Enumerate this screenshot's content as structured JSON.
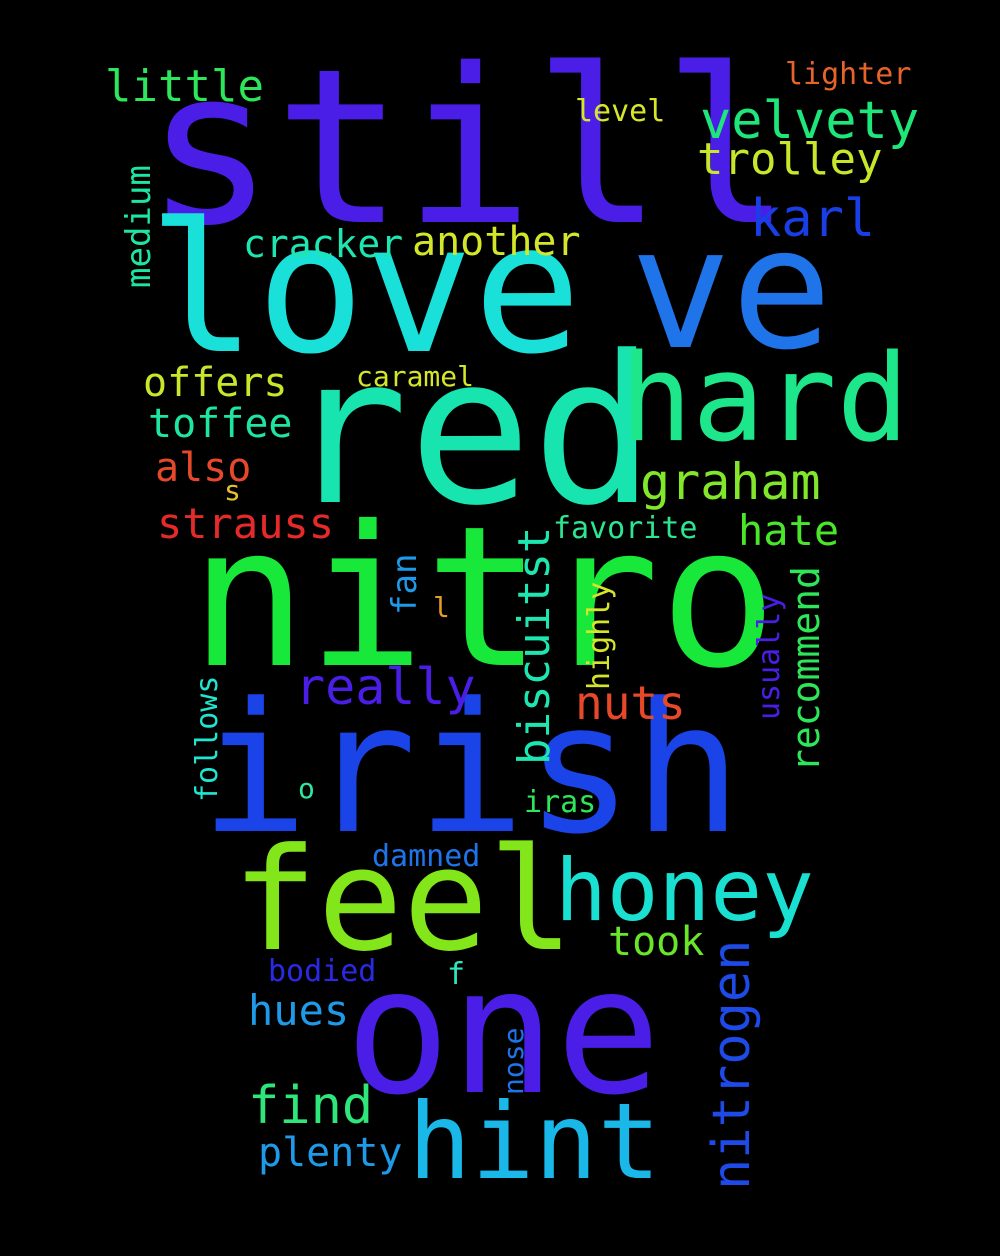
{
  "words": {
    "still": {
      "text": "still",
      "color": "#4a1ee6"
    },
    "love": {
      "text": "love",
      "color": "#19e0d8"
    },
    "ve": {
      "text": "ve",
      "color": "#1e74e8"
    },
    "red": {
      "text": "red",
      "color": "#18e4b0"
    },
    "hard": {
      "text": "hard",
      "color": "#1ee68a"
    },
    "nitro": {
      "text": "nitro",
      "color": "#18e83a"
    },
    "irish": {
      "text": "irish",
      "color": "#1a44e8"
    },
    "feel": {
      "text": "feel",
      "color": "#82e61a"
    },
    "one": {
      "text": "one",
      "color": "#4a1ee6"
    },
    "hint": {
      "text": "hint",
      "color": "#1ab8e8"
    },
    "honey": {
      "text": "honey",
      "color": "#19e0d0"
    },
    "graham": {
      "text": "graham",
      "color": "#82e62a"
    },
    "karl": {
      "text": "karl",
      "color": "#1a3ee6"
    },
    "velvety": {
      "text": "velvety",
      "color": "#1ee67a"
    },
    "trolley": {
      "text": "trolley",
      "color": "#c8e62a"
    },
    "little": {
      "text": "little",
      "color": "#2ee65a"
    },
    "lighter": {
      "text": "lighter",
      "color": "#e6642a"
    },
    "level": {
      "text": "level",
      "color": "#d8e62a"
    },
    "cracker": {
      "text": "cracker",
      "color": "#1ee6b0"
    },
    "another": {
      "text": "another",
      "color": "#d4e62a"
    },
    "offers": {
      "text": "offers",
      "color": "#c8e62a"
    },
    "caramel": {
      "text": "caramel",
      "color": "#d4e62a"
    },
    "toffee": {
      "text": "toffee",
      "color": "#1ee6a0"
    },
    "also": {
      "text": "also",
      "color": "#e6482a"
    },
    "s": {
      "text": "s",
      "color": "#e6c02a"
    },
    "strauss": {
      "text": "strauss",
      "color": "#e62a2a"
    },
    "favorite": {
      "text": "favorite",
      "color": "#2ee690"
    },
    "hate": {
      "text": "hate",
      "color": "#4ae62a"
    },
    "really": {
      "text": "really",
      "color": "#4a1ee6"
    },
    "nuts": {
      "text": "nuts",
      "color": "#e6482a"
    },
    "l": {
      "text": "l",
      "color": "#e69a2a"
    },
    "o": {
      "text": "o",
      "color": "#2ee6a0"
    },
    "iras": {
      "text": "iras",
      "color": "#2ee65a"
    },
    "damned": {
      "text": "damned",
      "color": "#1e74e8"
    },
    "took": {
      "text": "took",
      "color": "#6ae62a"
    },
    "bodied": {
      "text": "bodied",
      "color": "#2a2ae6"
    },
    "f": {
      "text": "f",
      "color": "#2ee6c0"
    },
    "hues": {
      "text": "hues",
      "color": "#1e9ae8"
    },
    "find": {
      "text": "find",
      "color": "#2ee67a"
    },
    "plenty": {
      "text": "plenty",
      "color": "#1e9ae8"
    },
    "medium": {
      "text": "medium",
      "color": "#1ee6a0"
    },
    "biscuitst": {
      "text": "biscuitst",
      "color": "#1ee6b0"
    },
    "fan": {
      "text": "fan",
      "color": "#1e9ae8"
    },
    "highly": {
      "text": "highly",
      "color": "#d4e62a"
    },
    "recommend": {
      "text": "recommend",
      "color": "#2ee65a"
    },
    "usually": {
      "text": "usually",
      "color": "#4a1ee6"
    },
    "follows": {
      "text": "follows",
      "color": "#1ee6d0"
    },
    "nitrogen": {
      "text": "nitrogen",
      "color": "#1e4ae8"
    },
    "nose": {
      "text": "nose",
      "color": "#1e74e8"
    }
  }
}
